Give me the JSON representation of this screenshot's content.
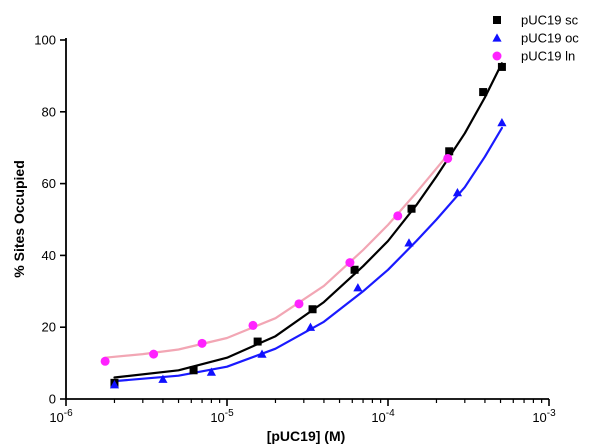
{
  "chart_data": {
    "type": "scatter",
    "xlabel": "[pUC19] (M)",
    "ylabel": "% Sites Occupied",
    "xscale": "log",
    "xlim": [
      1e-06,
      0.001
    ],
    "ylim": [
      0,
      100
    ],
    "x_ticks": [
      {
        "value": 1e-06,
        "base": "10",
        "exp": "-6"
      },
      {
        "value": 1e-05,
        "base": "10",
        "exp": "-5"
      },
      {
        "value": 0.0001,
        "base": "10",
        "exp": "-4"
      },
      {
        "value": 0.001,
        "base": "10",
        "exp": "-3"
      }
    ],
    "y_ticks": [
      0,
      20,
      40,
      60,
      80,
      100
    ],
    "grid": false,
    "legend_position": "top-right",
    "series": [
      {
        "name": "pUC19 sc",
        "marker": "square",
        "color": "#000000",
        "fit_color": "#000000",
        "points": [
          {
            "x": 2e-06,
            "y": 4.5
          },
          {
            "x": 6.2e-06,
            "y": 8
          },
          {
            "x": 1.55e-05,
            "y": 16
          },
          {
            "x": 3.4e-05,
            "y": 25
          },
          {
            "x": 6.2e-05,
            "y": 36
          },
          {
            "x": 0.00014,
            "y": 53
          },
          {
            "x": 0.00024,
            "y": 69
          },
          {
            "x": 0.00039,
            "y": 85.5
          },
          {
            "x": 0.00051,
            "y": 92.5
          }
        ],
        "fit": [
          {
            "x": 2e-06,
            "y": 6
          },
          {
            "x": 5e-06,
            "y": 8
          },
          {
            "x": 1e-05,
            "y": 11.5
          },
          {
            "x": 2e-05,
            "y": 17.5
          },
          {
            "x": 4e-05,
            "y": 27
          },
          {
            "x": 7e-05,
            "y": 37
          },
          {
            "x": 0.0001,
            "y": 44
          },
          {
            "x": 0.00015,
            "y": 54
          },
          {
            "x": 0.0002,
            "y": 62
          },
          {
            "x": 0.0003,
            "y": 74
          },
          {
            "x": 0.0004,
            "y": 84
          },
          {
            "x": 0.00051,
            "y": 93.5
          }
        ]
      },
      {
        "name": "pUC19 oc",
        "marker": "triangle",
        "color": "#1010ff",
        "fit_color": "#1a1aff",
        "points": [
          {
            "x": 2e-06,
            "y": 4
          },
          {
            "x": 4e-06,
            "y": 5.5
          },
          {
            "x": 8e-06,
            "y": 7.5
          },
          {
            "x": 1.65e-05,
            "y": 12.5
          },
          {
            "x": 3.3e-05,
            "y": 20
          },
          {
            "x": 6.5e-05,
            "y": 31
          },
          {
            "x": 0.000135,
            "y": 43.5
          },
          {
            "x": 0.00027,
            "y": 57.5
          },
          {
            "x": 0.00051,
            "y": 77
          }
        ],
        "fit": [
          {
            "x": 2e-06,
            "y": 5
          },
          {
            "x": 5e-06,
            "y": 6.5
          },
          {
            "x": 1e-05,
            "y": 9
          },
          {
            "x": 2e-05,
            "y": 14
          },
          {
            "x": 4e-05,
            "y": 21.5
          },
          {
            "x": 7e-05,
            "y": 30
          },
          {
            "x": 0.0001,
            "y": 36
          },
          {
            "x": 0.00015,
            "y": 44
          },
          {
            "x": 0.0002,
            "y": 50
          },
          {
            "x": 0.0003,
            "y": 59
          },
          {
            "x": 0.0004,
            "y": 67.5
          },
          {
            "x": 0.00051,
            "y": 75.5
          }
        ]
      },
      {
        "name": "pUC19 ln",
        "marker": "circle",
        "color": "#ff22ff",
        "fit_color": "#f2a6b4",
        "points": [
          {
            "x": 1.75e-06,
            "y": 10.5
          },
          {
            "x": 3.5e-06,
            "y": 12.5
          },
          {
            "x": 7e-06,
            "y": 15.5
          },
          {
            "x": 1.45e-05,
            "y": 20.5
          },
          {
            "x": 2.8e-05,
            "y": 26.5
          },
          {
            "x": 5.8e-05,
            "y": 38
          },
          {
            "x": 0.000115,
            "y": 51
          },
          {
            "x": 0.000235,
            "y": 67
          }
        ],
        "fit": [
          {
            "x": 1.75e-06,
            "y": 11.5
          },
          {
            "x": 3e-06,
            "y": 12.5
          },
          {
            "x": 5e-06,
            "y": 13.8
          },
          {
            "x": 1e-05,
            "y": 17
          },
          {
            "x": 2e-05,
            "y": 22.5
          },
          {
            "x": 4e-05,
            "y": 31.5
          },
          {
            "x": 7e-05,
            "y": 41.5
          },
          {
            "x": 0.0001,
            "y": 48.5
          },
          {
            "x": 0.00015,
            "y": 57.5
          },
          {
            "x": 0.000235,
            "y": 68
          }
        ]
      }
    ]
  }
}
